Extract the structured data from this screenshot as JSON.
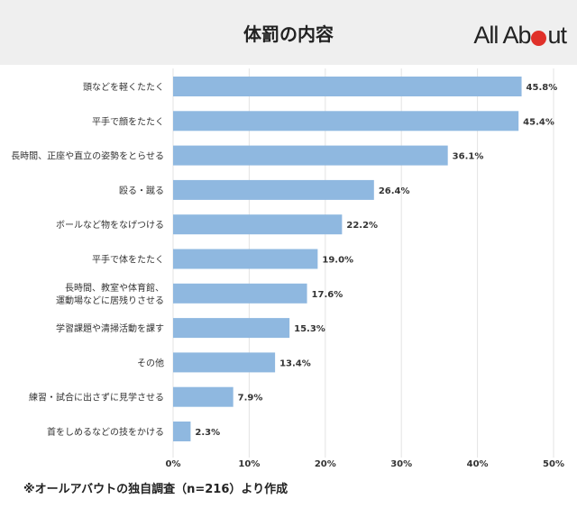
{
  "header": {
    "title": "体罰の内容",
    "logo_left": "All Ab",
    "logo_right": "ut"
  },
  "footnote": "※オールアバウトの独自調査（n=216）より作成",
  "colors": {
    "bar": "#8fb8e0",
    "header_bg": "#efefef",
    "logo_dot": "#e0312a"
  },
  "chart_data": {
    "type": "bar",
    "orientation": "horizontal",
    "categories": [
      [
        "頭などを軽くたたく"
      ],
      [
        "平手で顔をたたく"
      ],
      [
        "長時間、正座や直立の姿勢をとらせる"
      ],
      [
        "殴る・蹴る"
      ],
      [
        "ボールなど物をなげつける"
      ],
      [
        "平手で体をたたく"
      ],
      [
        "長時間、教室や体育館、",
        "運動場などに居残りさせる"
      ],
      [
        "学習課題や清掃活動を課す"
      ],
      [
        "その他"
      ],
      [
        "練習・試合に出さずに見学させる"
      ],
      [
        "首をしめるなどの技をかける"
      ]
    ],
    "values": [
      45.8,
      45.4,
      36.1,
      26.4,
      22.2,
      19.0,
      17.6,
      15.3,
      13.4,
      7.9,
      2.3
    ],
    "value_labels": [
      "45.8%",
      "45.4%",
      "36.1%",
      "26.4%",
      "22.2%",
      "19.0%",
      "17.6%",
      "15.3%",
      "13.4%",
      "7.9%",
      "2.3%"
    ],
    "xlim": [
      0,
      50
    ],
    "xticks": [
      0,
      10,
      20,
      30,
      40,
      50
    ],
    "xtick_labels": [
      "0%",
      "10%",
      "20%",
      "30%",
      "40%",
      "50%"
    ],
    "grid": true
  }
}
